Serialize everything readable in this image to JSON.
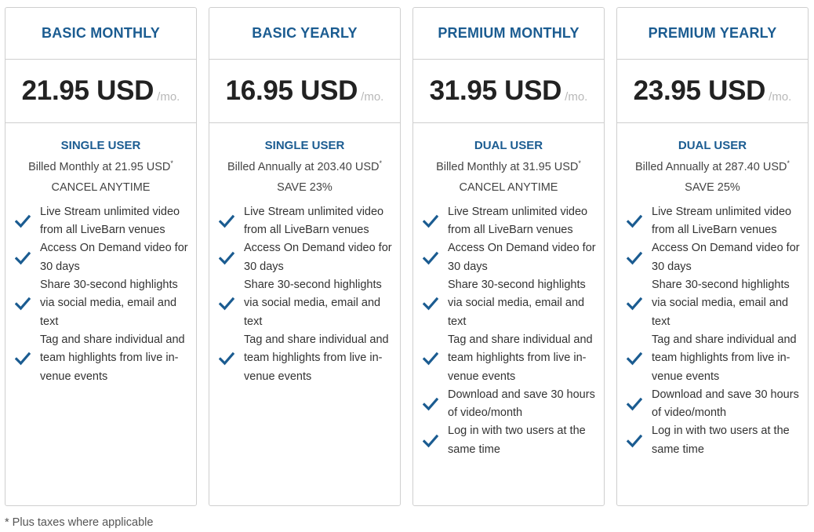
{
  "colors": {
    "accent": "#1b5c91",
    "check": "#1b5c91"
  },
  "plans": [
    {
      "name": "BASIC MONTHLY",
      "price": "21.95 USD",
      "unit": "/mo.",
      "user_type": "SINGLE USER",
      "billing": "Billed Monthly at 21.95 USD",
      "billing_mark": "*",
      "note": "CANCEL ANYTIME",
      "features": [
        "Live Stream unlimited video from all LiveBarn venues",
        "Access On Demand video for 30 days",
        "Share 30-second highlights via social media, email and text",
        "Tag and share individual and team highlights from live in-venue events"
      ]
    },
    {
      "name": "BASIC YEARLY",
      "price": "16.95 USD",
      "unit": "/mo.",
      "user_type": "SINGLE USER",
      "billing": "Billed Annually at 203.40 USD",
      "billing_mark": "*",
      "note": "SAVE 23%",
      "features": [
        "Live Stream unlimited video from all LiveBarn venues",
        "Access On Demand video for 30 days",
        "Share 30-second highlights via social media, email and text",
        "Tag and share individual and team highlights from live in-venue events"
      ]
    },
    {
      "name": "PREMIUM MONTHLY",
      "price": "31.95 USD",
      "unit": "/mo.",
      "user_type": "DUAL USER",
      "billing": "Billed Monthly at 31.95 USD",
      "billing_mark": "*",
      "note": "CANCEL ANYTIME",
      "features": [
        "Live Stream unlimited video from all LiveBarn venues",
        "Access On Demand video for 30 days",
        "Share 30-second highlights via social media, email and text",
        "Tag and share individual and team highlights from live in-venue events",
        "Download and save 30 hours of video/month",
        "Log in with two users at the same time"
      ]
    },
    {
      "name": "PREMIUM YEARLY",
      "price": "23.95 USD",
      "unit": "/mo.",
      "user_type": "DUAL USER",
      "billing": "Billed Annually at 287.40 USD",
      "billing_mark": "*",
      "note": "SAVE 25%",
      "features": [
        "Live Stream unlimited video from all LiveBarn venues",
        "Access On Demand video for 30 days",
        "Share 30-second highlights via social media, email and text",
        "Tag and share individual and team highlights from live in-venue events",
        "Download and save 30 hours of video/month",
        "Log in with two users at the same time"
      ]
    }
  ],
  "footnote": "* Plus taxes where applicable"
}
